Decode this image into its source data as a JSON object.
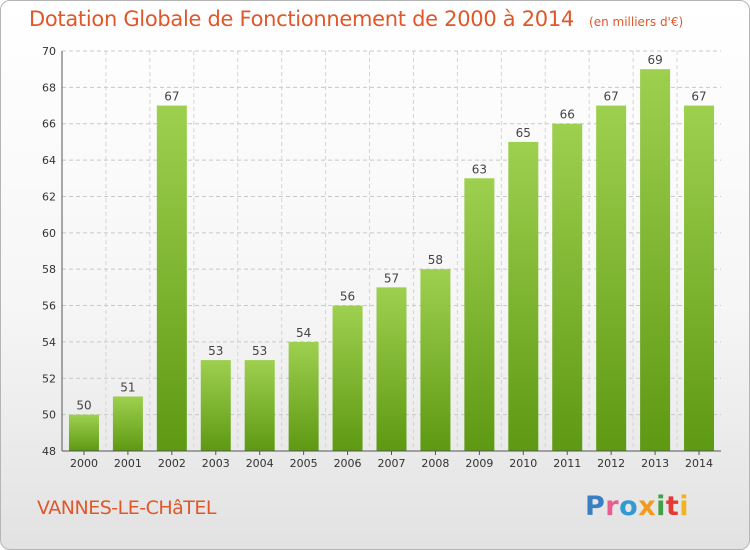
{
  "header": {
    "title": "Dotation Globale de Fonctionnement de 2000 à 2014",
    "subtitle": "(en milliers d'€)"
  },
  "footer": {
    "city": "VANNES-LE-CHâTEL",
    "logo": "Proxiti"
  },
  "colors": {
    "accent": "#e0572a",
    "bar_light": "#9ed04f",
    "bar_dark": "#5e9913"
  },
  "chart_data": {
    "type": "bar",
    "title": "Dotation Globale de Fonctionnement de 2000 à 2014",
    "subtitle": "(en milliers d'€)",
    "xlabel": "",
    "ylabel": "",
    "categories": [
      "2000",
      "2001",
      "2002",
      "2003",
      "2004",
      "2005",
      "2006",
      "2007",
      "2008",
      "2009",
      "2010",
      "2011",
      "2012",
      "2013",
      "2014"
    ],
    "values": [
      50,
      51,
      67,
      53,
      53,
      54,
      56,
      57,
      58,
      63,
      65,
      66,
      67,
      69,
      67
    ],
    "ylim": [
      48,
      70
    ],
    "yticks": [
      48,
      50,
      52,
      54,
      56,
      58,
      60,
      62,
      64,
      66,
      68,
      70
    ],
    "grid": true
  }
}
